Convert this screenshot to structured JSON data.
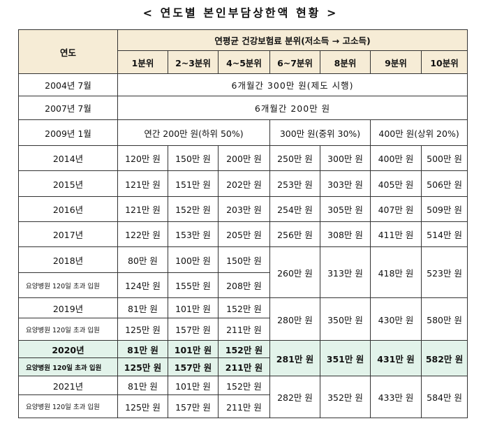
{
  "title": "< 연도별 본인부담상한액 현황 >",
  "header": {
    "year_label": "연도",
    "group_label": "연평균 건강보험료 분위(저소득 → 고소득)",
    "deciles": [
      "1분위",
      "2~3분위",
      "4~5분위",
      "6~7분위",
      "8분위",
      "9분위",
      "10분위"
    ]
  },
  "rows": {
    "r2004": {
      "year": "2004년 7월",
      "note": "6개월간 300만 원(제도 시행)"
    },
    "r2007": {
      "year": "2007년 7월",
      "note": "6개월간 200만 원"
    },
    "r2009": {
      "year": "2009년 1월",
      "low": "연간 200만 원(하위 50%)",
      "mid": "300만 원(중위 30%)",
      "high": "400만 원(상위 20%)"
    },
    "r2014": {
      "year": "2014년",
      "values": [
        "120만 원",
        "150만 원",
        "200만 원",
        "250만 원",
        "300만 원",
        "400만 원",
        "500만 원"
      ]
    },
    "r2015": {
      "year": "2015년",
      "values": [
        "121만 원",
        "151만 원",
        "202만 원",
        "253만 원",
        "303만 원",
        "405만 원",
        "506만 원"
      ]
    },
    "r2016": {
      "year": "2016년",
      "values": [
        "121만 원",
        "152만 원",
        "203만 원",
        "254만 원",
        "305만 원",
        "407만 원",
        "509만 원"
      ]
    },
    "r2017": {
      "year": "2017년",
      "values": [
        "122만 원",
        "153만 원",
        "205만 원",
        "256만 원",
        "308만 원",
        "411만 원",
        "514만 원"
      ]
    },
    "r2018": {
      "year": "2018년",
      "sub_label": "요양병원 120일 초과 입원",
      "top": [
        "80만 원",
        "100만 원",
        "150만 원"
      ],
      "bottom": [
        "124만 원",
        "155만 원",
        "208만 원"
      ],
      "shared": [
        "260만 원",
        "313만 원",
        "418만 원",
        "523만 원"
      ]
    },
    "r2019": {
      "year": "2019년",
      "sub_label": "요양병원 120일 초과 입원",
      "top": [
        "81만 원",
        "101만 원",
        "152만 원"
      ],
      "bottom": [
        "125만 원",
        "157만 원",
        "211만 원"
      ],
      "shared": [
        "280만 원",
        "350만 원",
        "430만 원",
        "580만 원"
      ]
    },
    "r2020": {
      "year": "2020년",
      "sub_label": "요양병원 120일 초과 입원",
      "top": [
        "81만 원",
        "101만 원",
        "152만 원"
      ],
      "bottom": [
        "125만 원",
        "157만 원",
        "211만 원"
      ],
      "shared": [
        "281만 원",
        "351만 원",
        "431만 원",
        "582만 원"
      ]
    },
    "r2021": {
      "year": "2021년",
      "sub_label": "요양병원 120일 초과 입원",
      "top": [
        "81만 원",
        "101만 원",
        "152만 원"
      ],
      "bottom": [
        "125만 원",
        "157만 원",
        "211만 원"
      ],
      "shared": [
        "282만 원",
        "352만 원",
        "433만 원",
        "584만 원"
      ]
    }
  },
  "colors": {
    "header_bg": "#f6ecd6",
    "highlight_bg": "#e2f3ea",
    "border": "#333333"
  }
}
